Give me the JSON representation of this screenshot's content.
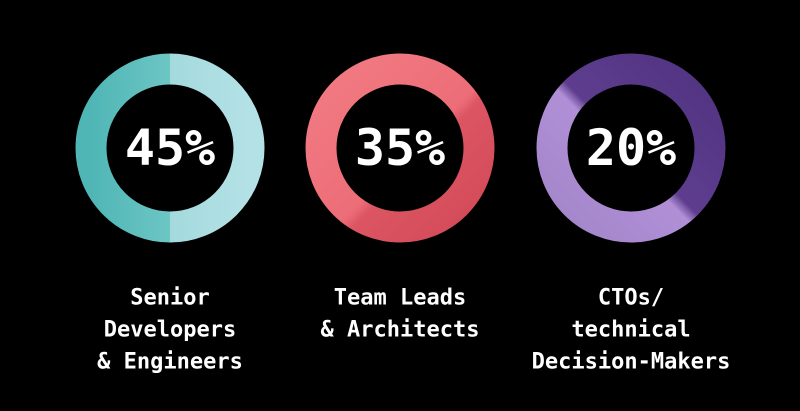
{
  "items": [
    {
      "value_label": "45%",
      "label_lines": [
        "Senior",
        "Developers",
        "& Engineers"
      ]
    },
    {
      "value_label": "35%",
      "label_lines": [
        "Team Leads",
        "& Architects"
      ]
    },
    {
      "value_label": "20%",
      "label_lines": [
        "CTOs/",
        "technical",
        "Decision-Makers"
      ]
    }
  ]
}
